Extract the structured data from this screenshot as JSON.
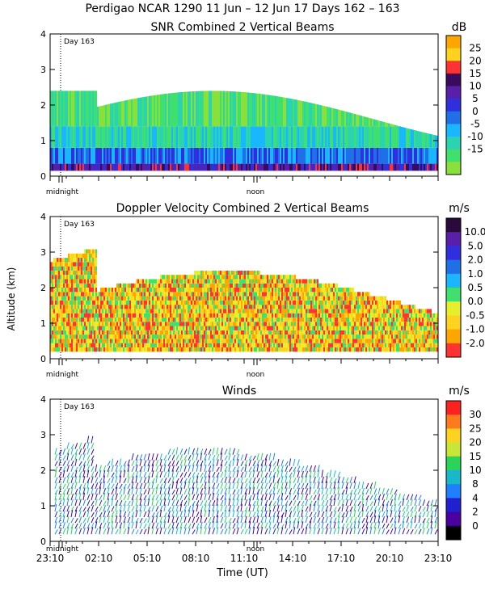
{
  "header": {
    "title_line": "Perdigao NCAR 1290  11 Jun – 12 Jun 17 Days 162 – 163"
  },
  "chart_data": [
    {
      "type": "heatmap",
      "title": "SNR Combined 2 Vertical Beams",
      "units": "dB",
      "ylim": [
        0,
        4
      ],
      "yticks": [
        "0",
        "1",
        "2",
        "3",
        "4"
      ],
      "colorbar": {
        "labels": [
          "25",
          "20",
          "15",
          "10",
          "5",
          "0",
          "-5",
          "-10",
          "-15"
        ],
        "colors": [
          "#ffa500",
          "#ffd21f",
          "#ff3333",
          "#3a0a5c",
          "#5a1fa8",
          "#2f2fe0",
          "#1f6fe6",
          "#18b7ff",
          "#2ad4b0",
          "#40e06e",
          "#8ae03a"
        ]
      },
      "annotations": {
        "day_marker": "Day 163",
        "midnight": "midnight",
        "noon": "noon"
      }
    },
    {
      "type": "heatmap",
      "title": "Doppler Velocity Combined 2 Vertical Beams",
      "units": "m/s",
      "ylabel": "Altitude (km)",
      "ylim": [
        0,
        4
      ],
      "yticks": [
        "0",
        "1",
        "2",
        "3",
        "4"
      ],
      "colorbar": {
        "labels": [
          "10.0",
          "5.0",
          "2.0",
          "1.0",
          "0.5",
          "0.0",
          "-0.5",
          "-1.0",
          "-2.0"
        ],
        "colors": [
          "#2a0a3a",
          "#5a1fa8",
          "#2f2fe0",
          "#1f6fe6",
          "#18b7ff",
          "#40e06e",
          "#e7ef2a",
          "#ffd21f",
          "#ffa500",
          "#ff3333"
        ]
      },
      "annotations": {
        "day_marker": "Day 163",
        "midnight": "midnight",
        "noon": "noon"
      }
    },
    {
      "type": "scatter",
      "title": "Winds",
      "units": "m/s",
      "xlabel": "Time (UT)",
      "ylim": [
        0,
        4
      ],
      "yticks": [
        "0",
        "1",
        "2",
        "3",
        "4"
      ],
      "xticks": [
        "23:10",
        "02:10",
        "05:10",
        "08:10",
        "11:10",
        "14:10",
        "17:10",
        "20:10",
        "23:10"
      ],
      "colorbar": {
        "labels": [
          "30",
          "25",
          "20",
          "15",
          "10",
          "8",
          "4",
          "2",
          "0"
        ],
        "colors": [
          "#ff2020",
          "#ff7a1a",
          "#ffd21f",
          "#c8e636",
          "#2ad45a",
          "#17b9c9",
          "#1e7fff",
          "#2020d0",
          "#4a00a0",
          "#000000"
        ]
      },
      "annotations": {
        "day_marker": "Day 163",
        "midnight": "midnight",
        "noon": "noon"
      }
    }
  ]
}
